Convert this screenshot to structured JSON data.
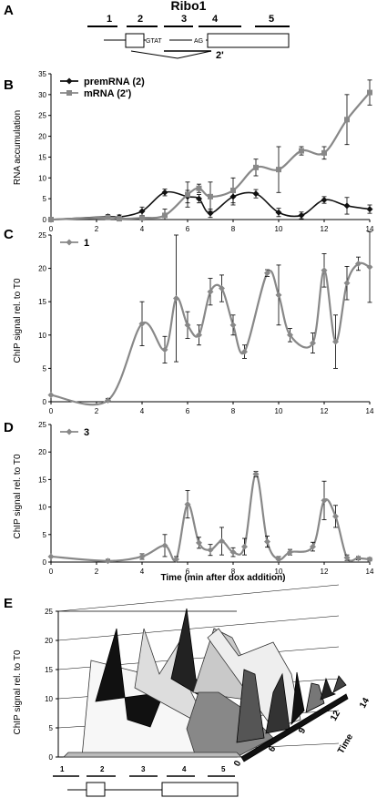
{
  "panels": {
    "A": "A",
    "B": "B",
    "C": "C",
    "D": "D",
    "E": "E"
  },
  "gene_diagram": {
    "title": "Ribo1",
    "regions": [
      "1",
      "2",
      "3",
      "4",
      "5"
    ],
    "donor_site": "GTAT",
    "acceptor_site": "AG",
    "spliced_label": "2'"
  },
  "chart_data": [
    {
      "type": "line",
      "panel": "B",
      "ylabel": "RNA accumulation",
      "ylim": [
        0,
        35
      ],
      "yticks": [
        0,
        5,
        10,
        15,
        20,
        25,
        30,
        35
      ],
      "xlim": [
        0,
        14
      ],
      "xticks": [
        0,
        2,
        4,
        6,
        8,
        10,
        12,
        14
      ],
      "legend_position": "top-left",
      "series": [
        {
          "name": "premRNA (2)",
          "color": "#111111",
          "marker": "diamond",
          "x": [
            0,
            2.5,
            3,
            4,
            5,
            6,
            6.5,
            7,
            8,
            9,
            10,
            11,
            12,
            13,
            14
          ],
          "y": [
            0,
            0.7,
            0.6,
            2.0,
            6.5,
            5.5,
            5.0,
            1.5,
            5.5,
            6.2,
            1.7,
            1.0,
            4.7,
            3.3,
            2.5
          ],
          "err": [
            0,
            0.5,
            0.5,
            1.0,
            0.8,
            1.5,
            1.0,
            1.0,
            2.0,
            1.0,
            1.0,
            0.8,
            0.8,
            2.0,
            1.0
          ]
        },
        {
          "name": "mRNA (2')",
          "color": "#888888",
          "marker": "square",
          "x": [
            0,
            2.5,
            3,
            4,
            5,
            6,
            6.5,
            7,
            8,
            9,
            10,
            11,
            12,
            13,
            14
          ],
          "y": [
            0,
            0.5,
            0.2,
            0.4,
            1.0,
            6.0,
            7.5,
            5.5,
            7.0,
            12.5,
            12.0,
            16.5,
            16.0,
            24.0,
            30.5
          ],
          "err": [
            0,
            0.5,
            0.5,
            0.5,
            1.5,
            3.0,
            1.0,
            3.5,
            3.0,
            2.0,
            5.5,
            1.0,
            1.5,
            6.0,
            3.0
          ]
        }
      ]
    },
    {
      "type": "line",
      "panel": "C",
      "ylabel": "ChIP signal rel. to T0",
      "ylim": [
        0,
        25
      ],
      "yticks": [
        0,
        5,
        10,
        15,
        20,
        25
      ],
      "xlim": [
        0,
        14
      ],
      "xticks": [
        0,
        2,
        4,
        6,
        8,
        10,
        12,
        14
      ],
      "legend_position": "top-left",
      "series": [
        {
          "name": "1",
          "color": "#888888",
          "marker": "diamond",
          "x": [
            0,
            2.5,
            4,
            5,
            5.5,
            6,
            6.5,
            7,
            7.5,
            8,
            8.5,
            9.5,
            10,
            10.5,
            11.5,
            12,
            12.5,
            13,
            13.5,
            14
          ],
          "y": [
            1.0,
            0.2,
            11.7,
            7.8,
            15.5,
            11.5,
            10.0,
            16.5,
            17.0,
            11.5,
            7.5,
            19.3,
            16.0,
            10.0,
            8.8,
            19.7,
            9.0,
            17.8,
            20.7,
            20.2
          ],
          "err": [
            0,
            0.3,
            3.3,
            2.0,
            9.5,
            2.0,
            1.5,
            2.0,
            2.0,
            1.5,
            1.0,
            0.5,
            4.5,
            1.0,
            1.5,
            2.5,
            4.0,
            2.5,
            1.0,
            5.3
          ]
        }
      ]
    },
    {
      "type": "line",
      "panel": "D",
      "ylabel": "ChIP signal rel. to T0",
      "xlabel": "Time (min after  dox addition)",
      "ylim": [
        0,
        25
      ],
      "yticks": [
        0,
        5,
        10,
        15,
        20,
        25
      ],
      "xlim": [
        0,
        14
      ],
      "xticks": [
        0,
        2,
        4,
        6,
        8,
        10,
        12,
        14
      ],
      "legend_position": "top-left",
      "series": [
        {
          "name": "3",
          "color": "#888888",
          "marker": "diamond",
          "x": [
            0,
            2.5,
            4,
            5,
            5.5,
            6,
            6.5,
            7,
            7.5,
            8,
            8.5,
            9,
            9.5,
            10,
            10.5,
            11.5,
            12,
            12.5,
            13,
            13.5,
            14
          ],
          "y": [
            1.0,
            0.2,
            1.0,
            3.0,
            0.5,
            10.5,
            3.5,
            2.2,
            3.8,
            1.8,
            2.8,
            16.0,
            3.7,
            0.5,
            1.8,
            2.8,
            11.2,
            8.3,
            0.8,
            0.7,
            0.5
          ],
          "err": [
            0,
            0.3,
            0.5,
            2.0,
            0.5,
            2.5,
            1.0,
            1.0,
            2.5,
            0.8,
            1.5,
            0.5,
            1.0,
            0.5,
            0.5,
            0.8,
            3.5,
            2.0,
            0.5,
            0.3,
            0.3
          ]
        }
      ]
    },
    {
      "type": "area",
      "panel": "E",
      "style": "3d-ribbon",
      "ylabel": "ChIP signal rel. to T0",
      "zlabel": "Time",
      "ylim": [
        0,
        25
      ],
      "yticks": [
        0,
        5,
        10,
        15,
        20,
        25
      ],
      "categories": [
        "1",
        "2",
        "3",
        "4",
        "5"
      ],
      "depth_ticks": [
        "0",
        "6",
        "9",
        "12",
        "14"
      ]
    }
  ]
}
